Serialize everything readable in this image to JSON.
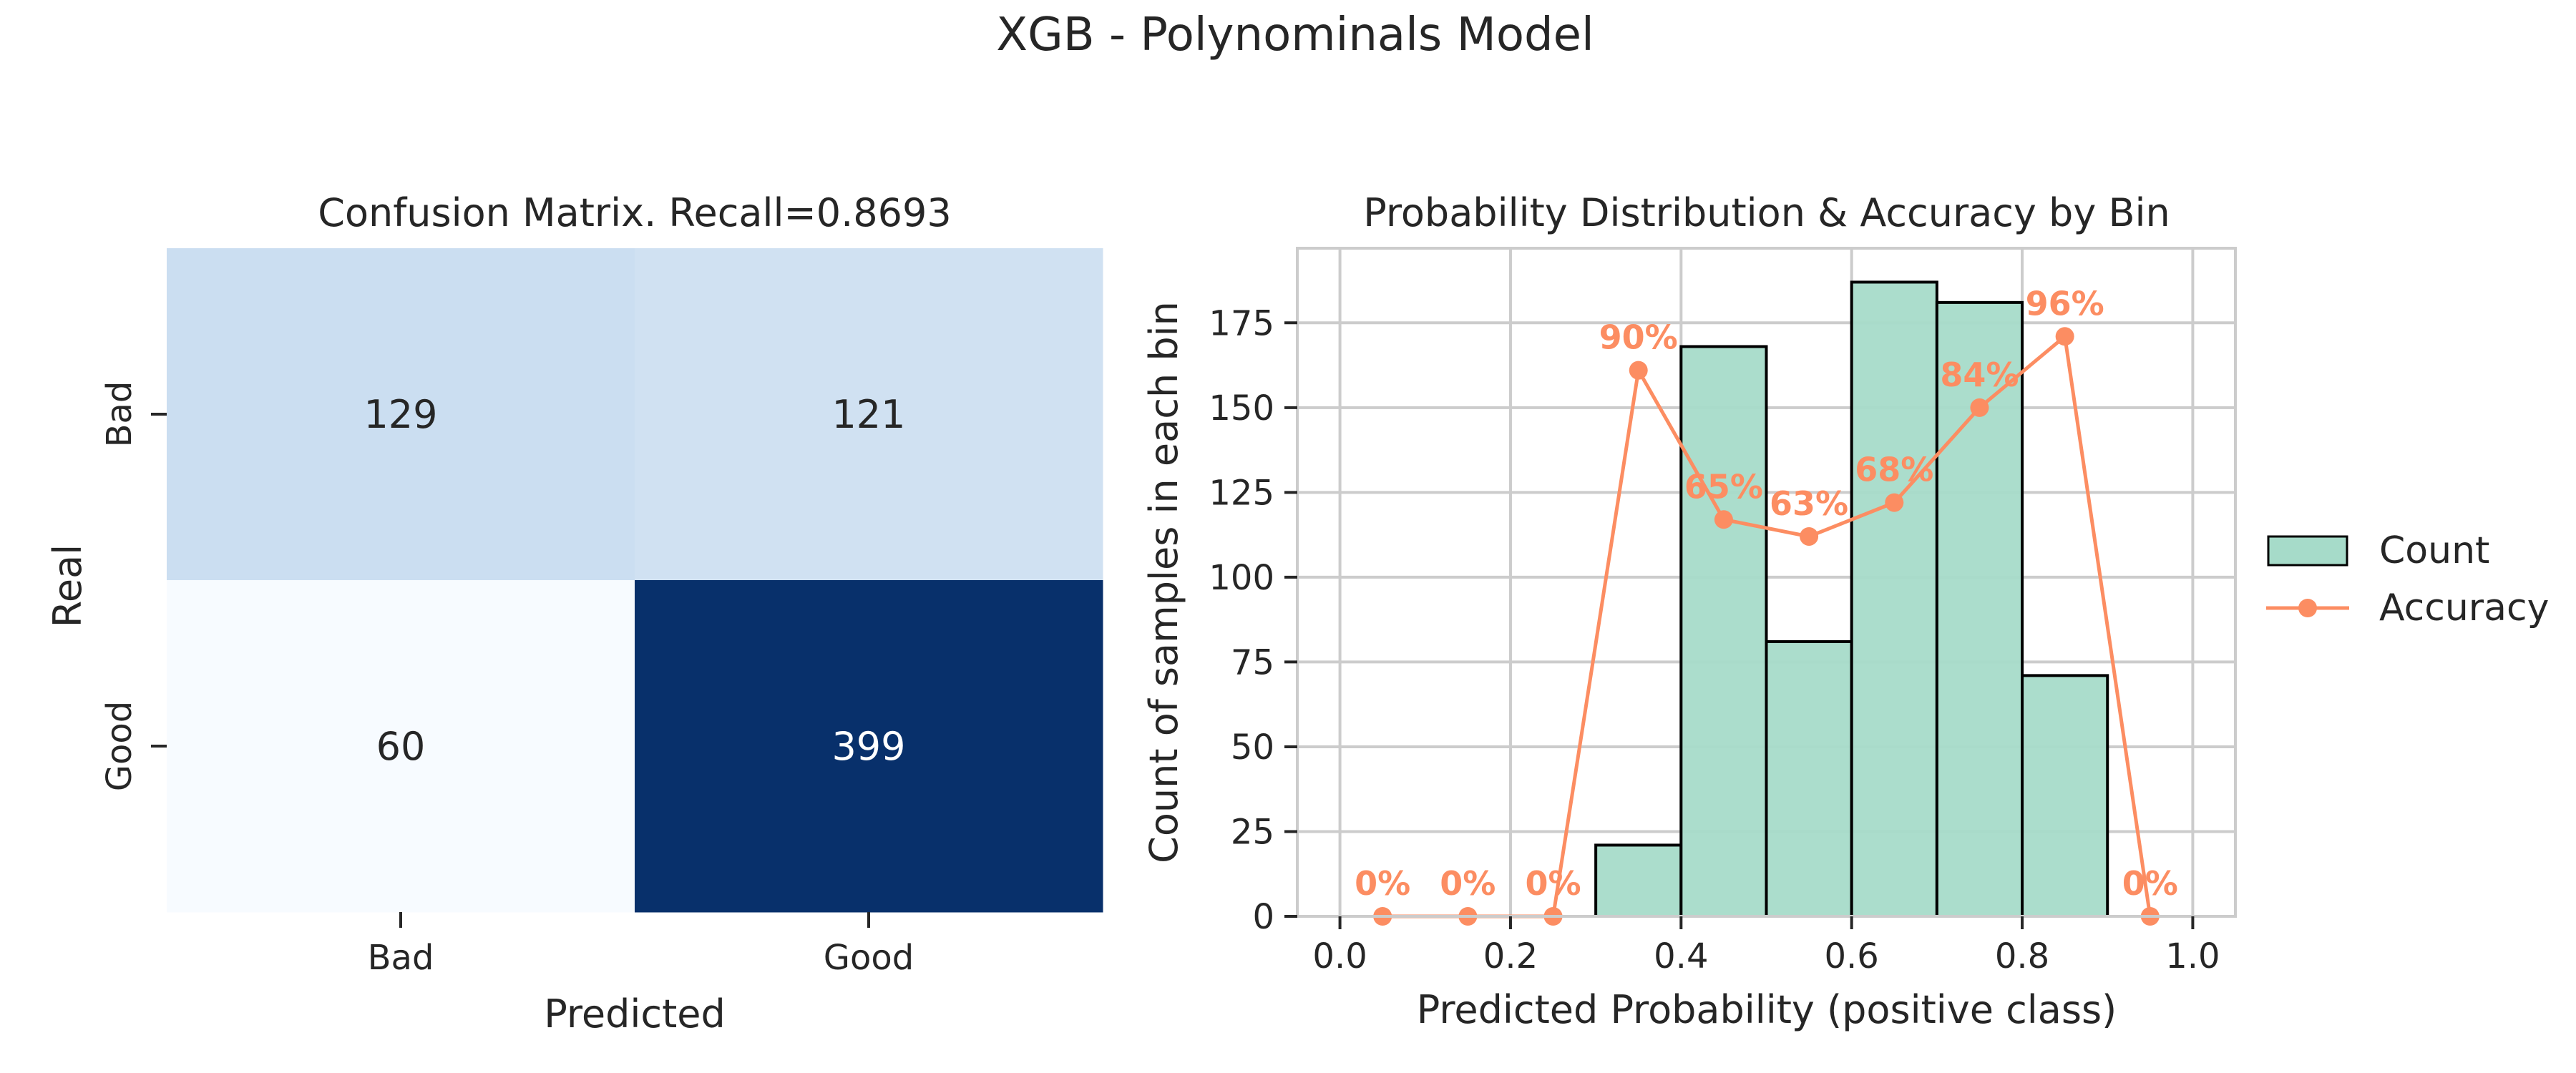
{
  "figure": {
    "title": "XGB - Polynominals Model"
  },
  "chart_data": [
    {
      "type": "heatmap",
      "title": "Confusion Matrix. Recall=0.8693",
      "xlabel": "Predicted",
      "ylabel": "Real",
      "x_categories": [
        "Bad",
        "Good"
      ],
      "y_categories": [
        "Bad",
        "Good"
      ],
      "values": [
        [
          129,
          121
        ],
        [
          60,
          399
        ]
      ],
      "colormap": "Blues",
      "colors": {
        "low": "#f7fbff",
        "high": "#08306b",
        "text_dark": "#262626",
        "text_light": "#ffffff"
      }
    },
    {
      "type": "bar",
      "title": "Probability Distribution & Accuracy by Bin",
      "xlabel": "Predicted Probability (positive class)",
      "ylabel": "Count of samples in each bin",
      "xlim": [
        -0.05,
        1.05
      ],
      "ylim": [
        0,
        197
      ],
      "x_ticks": [
        0.0,
        0.2,
        0.4,
        0.6,
        0.8,
        1.0
      ],
      "x_tick_labels": [
        "0.0",
        "0.2",
        "0.4",
        "0.6",
        "0.8",
        "1.0"
      ],
      "y_ticks": [
        0,
        25,
        50,
        75,
        100,
        125,
        150,
        175
      ],
      "y_tick_labels": [
        "0",
        "25",
        "50",
        "75",
        "100",
        "125",
        "150",
        "175"
      ],
      "grid": true,
      "legend_position": "right",
      "bin_edges": [
        0.0,
        0.1,
        0.2,
        0.3,
        0.4,
        0.5,
        0.6,
        0.7,
        0.8,
        0.9,
        1.0
      ],
      "series": [
        {
          "name": "Count",
          "kind": "bar",
          "color": "#a6dbc9",
          "values": [
            0,
            0,
            0,
            21,
            168,
            81,
            187,
            181,
            71,
            0
          ]
        },
        {
          "name": "Accuracy",
          "kind": "line",
          "color": "#fc8d62",
          "x": [
            0.05,
            0.15,
            0.25,
            0.35,
            0.45,
            0.55,
            0.65,
            0.75,
            0.85,
            0.95
          ],
          "values": [
            0,
            0,
            0,
            161,
            117,
            112,
            122,
            150,
            171,
            0
          ],
          "labels": [
            "0%",
            "0%",
            "0%",
            "90%",
            "65%",
            "63%",
            "68%",
            "84%",
            "96%",
            "0%"
          ]
        }
      ]
    }
  ]
}
